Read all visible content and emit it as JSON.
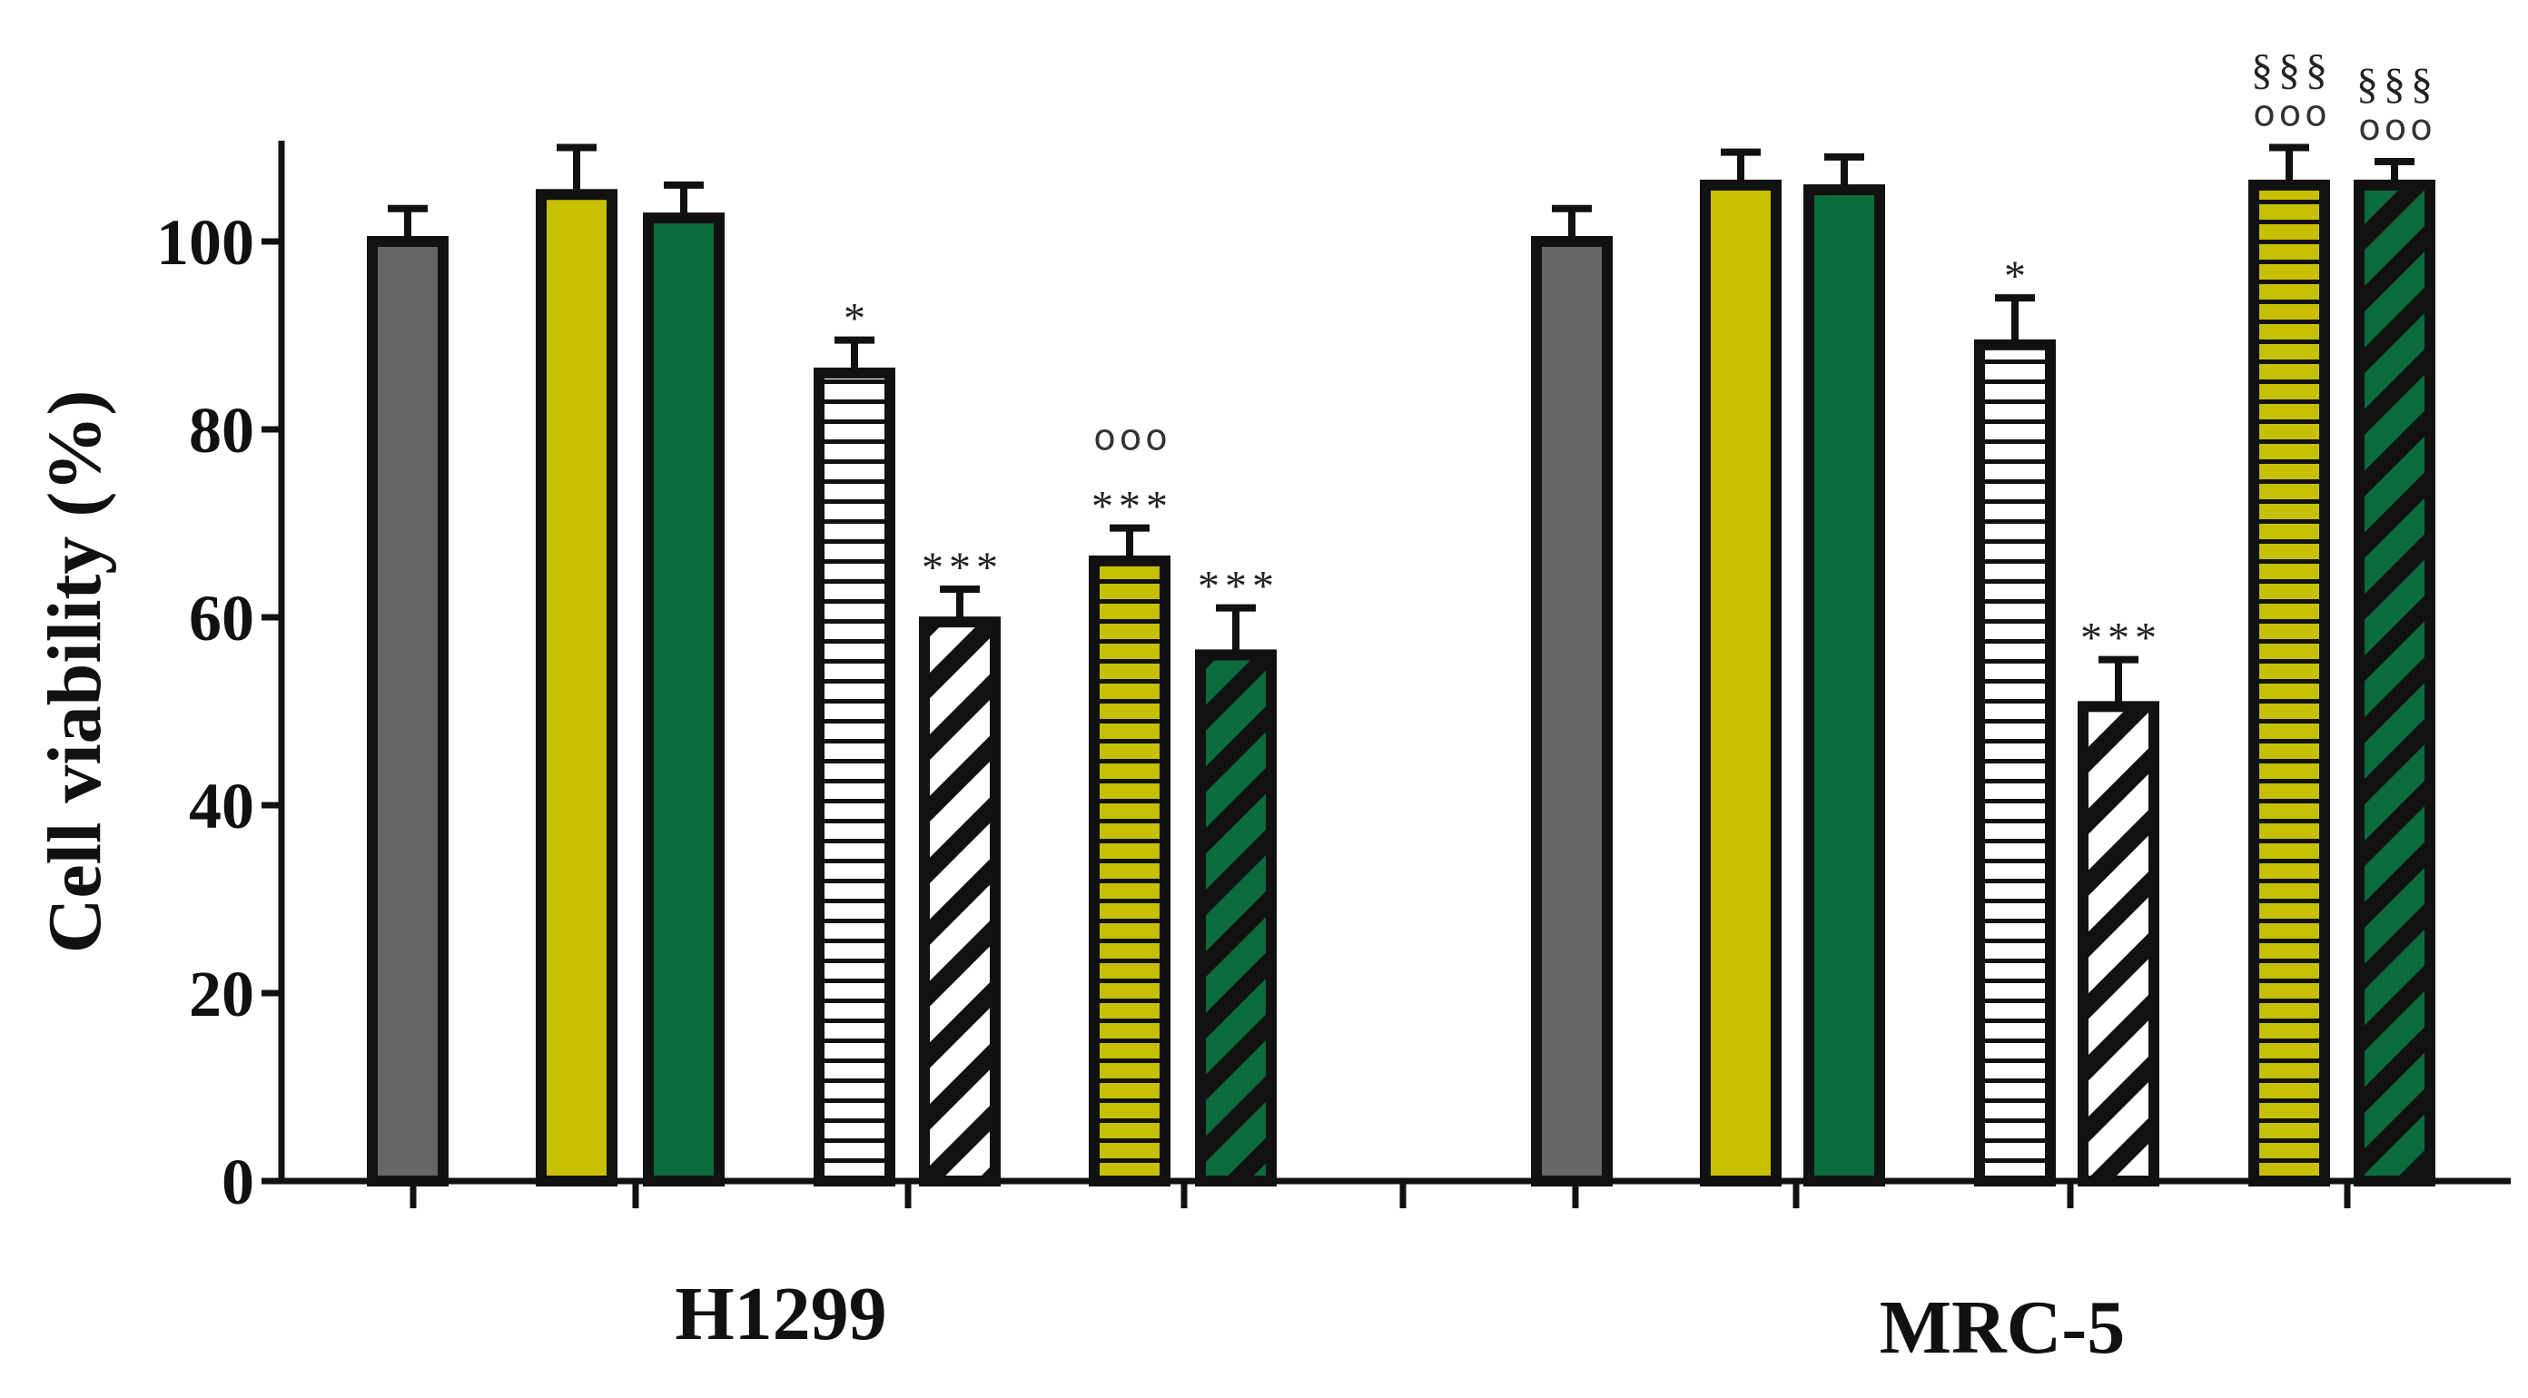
{
  "chart_data": {
    "type": "bar",
    "title": "",
    "xlabel": "",
    "ylabel": "Cell viability (%)",
    "ylim": [
      0,
      110
    ],
    "yticks": [
      "0",
      "20",
      "40",
      "60",
      "80",
      "100"
    ],
    "grid": false,
    "legend": null,
    "groups": [
      {
        "label": "H1299",
        "bars": [
          {
            "value": 100,
            "error": 3.5,
            "fill": "#666666",
            "pattern": "solid",
            "annotations": []
          },
          {
            "value": 105,
            "error": 5,
            "fill": "#c6c000",
            "pattern": "solid",
            "annotations": []
          },
          {
            "value": 102.5,
            "error": 3.5,
            "fill": "#0b6b3c",
            "pattern": "solid",
            "annotations": []
          },
          {
            "value": 86,
            "error": 3.5,
            "fill": "#ffffff",
            "pattern": "horizontal",
            "annotations": [
              "*"
            ]
          },
          {
            "value": 59.5,
            "error": 3.5,
            "fill": "#ffffff",
            "pattern": "diagonal",
            "annotations": [
              "***"
            ]
          },
          {
            "value": 66,
            "error": 3.5,
            "fill": "#c6c000",
            "pattern": "horizontal",
            "annotations": [
              "***",
              "ooo"
            ]
          },
          {
            "value": 56,
            "error": 5,
            "fill": "#0b6b3c",
            "pattern": "diagonal",
            "annotations": [
              "***"
            ]
          }
        ]
      },
      {
        "label": "MRC-5",
        "bars": [
          {
            "value": 100,
            "error": 3.5,
            "fill": "#666666",
            "pattern": "solid",
            "annotations": []
          },
          {
            "value": 106,
            "error": 3.5,
            "fill": "#c6c000",
            "pattern": "solid",
            "annotations": []
          },
          {
            "value": 105.5,
            "error": 3.5,
            "fill": "#0b6b3c",
            "pattern": "solid",
            "annotations": []
          },
          {
            "value": 89,
            "error": 5,
            "fill": "#ffffff",
            "pattern": "horizontal",
            "annotations": [
              "*"
            ]
          },
          {
            "value": 50.5,
            "error": 5,
            "fill": "#ffffff",
            "pattern": "diagonal",
            "annotations": [
              "***"
            ]
          },
          {
            "value": 106,
            "error": 4,
            "fill": "#c6c000",
            "pattern": "horizontal",
            "annotations": [
              "ooo",
              "§§§"
            ]
          },
          {
            "value": 106,
            "error": 2.5,
            "fill": "#0b6b3c",
            "pattern": "diagonal",
            "annotations": [
              "ooo",
              "§§§"
            ]
          }
        ]
      }
    ]
  }
}
